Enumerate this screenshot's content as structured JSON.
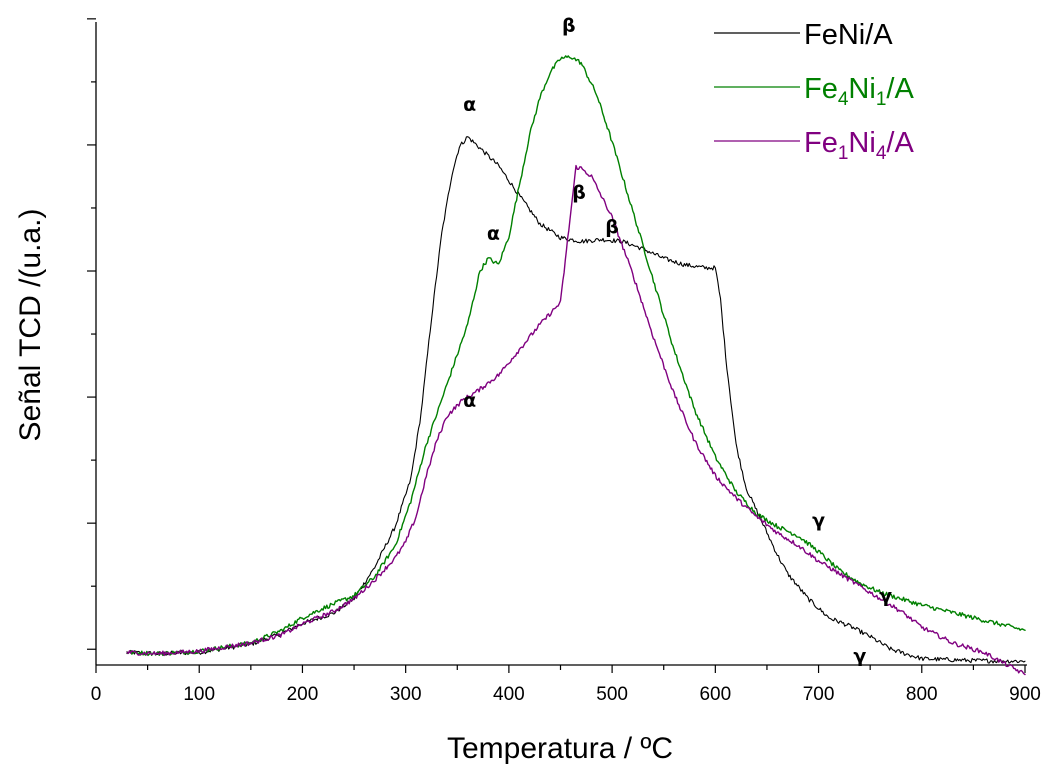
{
  "chart_data": {
    "type": "line",
    "xlabel": "Temperatura / ºC",
    "ylabel": "Señal TCD /(u.a.)",
    "xlim": [
      0,
      900
    ],
    "ylim": [
      0,
      10.2
    ],
    "x_ticks": [
      0,
      100,
      200,
      300,
      400,
      500,
      600,
      700,
      800,
      900
    ],
    "y_major_ticks": [
      0.25,
      2.25,
      4.25,
      6.25,
      8.25,
      10.25
    ],
    "y_tick_labels_shown": false,
    "grid": false,
    "legend_position": "top-right",
    "series": [
      {
        "name": "FeNi/A",
        "legend_parts": [
          {
            "t": "FeNi/A",
            "sub": false
          }
        ],
        "color": "#000000",
        "points": [
          [
            30,
            0.2
          ],
          [
            60,
            0.18
          ],
          [
            100,
            0.2
          ],
          [
            150,
            0.33
          ],
          [
            180,
            0.5
          ],
          [
            200,
            0.66
          ],
          [
            230,
            0.82
          ],
          [
            250,
            1.05
          ],
          [
            270,
            1.55
          ],
          [
            290,
            2.2
          ],
          [
            305,
            2.95
          ],
          [
            315,
            4.0
          ],
          [
            325,
            5.5
          ],
          [
            335,
            6.85
          ],
          [
            345,
            7.8
          ],
          [
            352,
            8.22
          ],
          [
            360,
            8.38
          ],
          [
            372,
            8.2
          ],
          [
            390,
            7.92
          ],
          [
            410,
            7.45
          ],
          [
            430,
            7.0
          ],
          [
            450,
            6.78
          ],
          [
            470,
            6.72
          ],
          [
            490,
            6.75
          ],
          [
            510,
            6.72
          ],
          [
            530,
            6.6
          ],
          [
            550,
            6.45
          ],
          [
            570,
            6.35
          ],
          [
            590,
            6.3
          ],
          [
            600,
            6.3
          ],
          [
            605,
            5.8
          ],
          [
            610,
            4.9
          ],
          [
            620,
            3.5
          ],
          [
            630,
            2.8
          ],
          [
            640,
            2.45
          ],
          [
            650,
            2.1
          ],
          [
            660,
            1.75
          ],
          [
            670,
            1.45
          ],
          [
            690,
            1.05
          ],
          [
            710,
            0.75
          ],
          [
            730,
            0.62
          ],
          [
            750,
            0.45
          ],
          [
            770,
            0.25
          ],
          [
            800,
            0.1
          ],
          [
            850,
            0.07
          ],
          [
            900,
            0.06
          ]
        ]
      },
      {
        "name": "Fe4Ni1/A",
        "legend_parts": [
          {
            "t": "Fe",
            "sub": false
          },
          {
            "t": "4",
            "sub": true
          },
          {
            "t": "Ni",
            "sub": false
          },
          {
            "t": "1",
            "sub": true
          },
          {
            "t": "/A",
            "sub": false
          }
        ],
        "color": "#008000",
        "points": [
          [
            30,
            0.2
          ],
          [
            60,
            0.18
          ],
          [
            100,
            0.22
          ],
          [
            150,
            0.35
          ],
          [
            180,
            0.55
          ],
          [
            200,
            0.75
          ],
          [
            220,
            0.9
          ],
          [
            250,
            1.1
          ],
          [
            270,
            1.4
          ],
          [
            290,
            1.9
          ],
          [
            305,
            2.6
          ],
          [
            320,
            3.5
          ],
          [
            340,
            4.45
          ],
          [
            360,
            5.4
          ],
          [
            372,
            6.25
          ],
          [
            380,
            6.45
          ],
          [
            390,
            6.35
          ],
          [
            400,
            6.8
          ],
          [
            410,
            7.6
          ],
          [
            420,
            8.4
          ],
          [
            430,
            9.0
          ],
          [
            440,
            9.4
          ],
          [
            450,
            9.62
          ],
          [
            460,
            9.65
          ],
          [
            470,
            9.55
          ],
          [
            485,
            9.05
          ],
          [
            500,
            8.3
          ],
          [
            520,
            7.2
          ],
          [
            540,
            6.1
          ],
          [
            560,
            5.0
          ],
          [
            580,
            4.05
          ],
          [
            600,
            3.3
          ],
          [
            620,
            2.75
          ],
          [
            640,
            2.4
          ],
          [
            660,
            2.2
          ],
          [
            680,
            2.05
          ],
          [
            700,
            1.8
          ],
          [
            720,
            1.5
          ],
          [
            740,
            1.3
          ],
          [
            760,
            1.15
          ],
          [
            780,
            1.05
          ],
          [
            800,
            0.95
          ],
          [
            850,
            0.75
          ],
          [
            900,
            0.55
          ]
        ]
      },
      {
        "name": "Fe1Ni4/A",
        "legend_parts": [
          {
            "t": "Fe",
            "sub": false
          },
          {
            "t": "1",
            "sub": true
          },
          {
            "t": "Ni",
            "sub": false
          },
          {
            "t": "4",
            "sub": true
          },
          {
            "t": "/A",
            "sub": false
          }
        ],
        "color": "#800080",
        "points": [
          [
            30,
            0.2
          ],
          [
            60,
            0.18
          ],
          [
            100,
            0.22
          ],
          [
            150,
            0.35
          ],
          [
            180,
            0.48
          ],
          [
            200,
            0.65
          ],
          [
            230,
            0.85
          ],
          [
            250,
            1.05
          ],
          [
            270,
            1.35
          ],
          [
            290,
            1.7
          ],
          [
            300,
            1.95
          ],
          [
            310,
            2.35
          ],
          [
            320,
            3.0
          ],
          [
            330,
            3.55
          ],
          [
            340,
            3.95
          ],
          [
            355,
            4.2
          ],
          [
            370,
            4.35
          ],
          [
            390,
            4.6
          ],
          [
            410,
            5.0
          ],
          [
            430,
            5.4
          ],
          [
            450,
            5.75
          ],
          [
            465,
            7.9
          ],
          [
            470,
            7.88
          ],
          [
            480,
            7.75
          ],
          [
            500,
            7.1
          ],
          [
            520,
            6.2
          ],
          [
            540,
            5.2
          ],
          [
            560,
            4.3
          ],
          [
            580,
            3.55
          ],
          [
            600,
            3.0
          ],
          [
            620,
            2.65
          ],
          [
            640,
            2.35
          ],
          [
            660,
            2.1
          ],
          [
            680,
            1.9
          ],
          [
            700,
            1.65
          ],
          [
            720,
            1.45
          ],
          [
            740,
            1.25
          ],
          [
            760,
            1.05
          ],
          [
            780,
            0.85
          ],
          [
            800,
            0.6
          ],
          [
            830,
            0.35
          ],
          [
            860,
            0.2
          ],
          [
            900,
            -0.15
          ]
        ]
      }
    ],
    "annotations": [
      {
        "text": "α",
        "x": 362,
        "y": 8.8
      },
      {
        "text": "β",
        "x": 458,
        "y": 10.05
      },
      {
        "text": "α",
        "x": 385,
        "y": 6.75
      },
      {
        "text": "β",
        "x": 500,
        "y": 6.85
      },
      {
        "text": "β",
        "x": 468,
        "y": 7.4
      },
      {
        "text": "α",
        "x": 362,
        "y": 4.1
      },
      {
        "text": "γ",
        "x": 700,
        "y": 2.2
      },
      {
        "text": "γ",
        "x": 765,
        "y": 1.0
      },
      {
        "text": "γ",
        "x": 740,
        "y": 0.05
      }
    ]
  }
}
